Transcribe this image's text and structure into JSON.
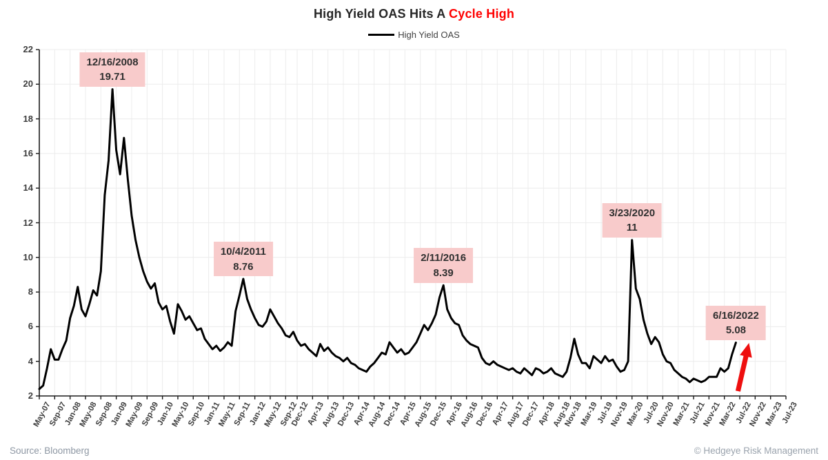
{
  "title": {
    "main": "High Yield OAS Hits A ",
    "highlight": "Cycle High"
  },
  "legend": {
    "label": "High Yield OAS"
  },
  "footer": {
    "source": "Source: Bloomberg",
    "copyright": "© Hedgeye Risk Management"
  },
  "colors": {
    "line": "#000000",
    "title_text": "#262626",
    "title_highlight": "#ff0000",
    "annotation_bg": "#f8cbcb",
    "annotation_text": "#303030",
    "grid": "#ececec",
    "axis": "#1a1a1a",
    "axis_text": "#3d3d3d",
    "footer_text": "#8d97a3",
    "arrow_red": "#ee0f0f"
  },
  "chart_data": {
    "type": "line",
    "title": "High Yield OAS Hits A Cycle High",
    "series_name": "High Yield OAS",
    "x_start_month": "2007-05",
    "x_end_month": "2023-07",
    "ylim": [
      2,
      22
    ],
    "y_ticks": [
      2,
      4,
      6,
      8,
      10,
      12,
      14,
      16,
      18,
      20,
      22
    ],
    "grid": "both",
    "legend_position": "top-center",
    "x_tick_labels": [
      "May-07",
      "Sep-07",
      "Jan-08",
      "May-08",
      "Sep-08",
      "Jan-09",
      "May-09",
      "Sep-09",
      "Jan-10",
      "May-10",
      "Sep-10",
      "Jan-11",
      "May-11",
      "Sep-11",
      "Jan-12",
      "May-12",
      "Sep-12",
      "Dec-12",
      "Apr-13",
      "Aug-13",
      "Dec-13",
      "Apr-14",
      "Aug-14",
      "Dec-14",
      "Apr-15",
      "Aug-15",
      "Dec-15",
      "Apr-16",
      "Aug-16",
      "Dec-16",
      "Apr-17",
      "Aug-17",
      "Dec-17",
      "Apr-18",
      "Aug-18",
      "Nov-18",
      "Mar-19",
      "Jul-19",
      "Nov-19",
      "Mar-20",
      "Jul-20",
      "Nov-20",
      "Mar-21",
      "Jul-21",
      "Nov-21",
      "Mar-22",
      "Jul-22",
      "Nov-22",
      "Mar-23",
      "Jul-23"
    ],
    "x_tick_month_offsets": [
      0,
      4,
      8,
      12,
      16,
      20,
      24,
      28,
      32,
      36,
      40,
      44,
      48,
      52,
      56,
      60,
      64,
      67,
      71,
      75,
      79,
      83,
      87,
      91,
      95,
      99,
      103,
      107,
      111,
      115,
      119,
      123,
      127,
      131,
      135,
      138,
      142,
      146,
      150,
      154,
      158,
      162,
      166,
      170,
      174,
      178,
      182,
      186,
      190,
      194
    ],
    "values_monthly": [
      2.4,
      2.6,
      3.6,
      4.7,
      4.1,
      4.1,
      4.7,
      5.2,
      6.5,
      7.2,
      8.3,
      7.0,
      6.6,
      7.3,
      8.1,
      7.8,
      9.2,
      13.6,
      15.6,
      19.71,
      16.2,
      14.8,
      16.9,
      14.5,
      12.4,
      11.0,
      10.0,
      9.2,
      8.6,
      8.2,
      8.5,
      7.4,
      7.0,
      7.2,
      6.3,
      5.6,
      7.3,
      6.9,
      6.4,
      6.6,
      6.2,
      5.8,
      5.9,
      5.3,
      5.0,
      4.7,
      4.9,
      4.6,
      4.8,
      5.1,
      4.9,
      6.9,
      7.8,
      8.76,
      7.6,
      7.0,
      6.5,
      6.1,
      6.0,
      6.3,
      7.0,
      6.6,
      6.2,
      5.9,
      5.5,
      5.4,
      5.7,
      5.2,
      4.9,
      5.0,
      4.7,
      4.5,
      4.3,
      5.0,
      4.6,
      4.8,
      4.5,
      4.3,
      4.2,
      4.0,
      4.2,
      3.9,
      3.8,
      3.6,
      3.5,
      3.4,
      3.7,
      3.9,
      4.2,
      4.5,
      4.4,
      5.1,
      4.8,
      4.5,
      4.7,
      4.4,
      4.5,
      4.8,
      5.1,
      5.6,
      6.1,
      5.8,
      6.2,
      6.7,
      7.7,
      8.39,
      7.0,
      6.5,
      6.2,
      6.1,
      5.5,
      5.2,
      5.0,
      4.9,
      4.8,
      4.2,
      3.9,
      3.8,
      4.0,
      3.8,
      3.7,
      3.6,
      3.5,
      3.6,
      3.4,
      3.3,
      3.6,
      3.4,
      3.2,
      3.6,
      3.5,
      3.3,
      3.4,
      3.6,
      3.3,
      3.2,
      3.1,
      3.4,
      4.2,
      5.3,
      4.4,
      3.9,
      3.9,
      3.6,
      4.3,
      4.1,
      3.9,
      4.3,
      4.0,
      4.1,
      3.7,
      3.4,
      3.5,
      4.0,
      11.0,
      8.2,
      7.6,
      6.4,
      5.6,
      5.0,
      5.4,
      5.1,
      4.4,
      4.0,
      3.9,
      3.5,
      3.3,
      3.1,
      3.0,
      2.8,
      3.0,
      2.9,
      2.8,
      2.9,
      3.1,
      3.1,
      3.1,
      3.6,
      3.4,
      3.6,
      4.4,
      5.08
    ],
    "annotations": [
      {
        "date": "12/16/2008",
        "value_label": "19.71",
        "value": 19.71,
        "month_offset": 19
      },
      {
        "date": "10/4/2011",
        "value_label": "8.76",
        "value": 8.76,
        "month_offset": 53
      },
      {
        "date": "2/11/2016",
        "value_label": "8.39",
        "value": 8.39,
        "month_offset": 105
      },
      {
        "date": "3/23/2020",
        "value_label": "11",
        "value": 11,
        "month_offset": 154
      },
      {
        "date": "6/16/2022",
        "value_label": "5.08",
        "value": 5.08,
        "month_offset": 181
      }
    ],
    "arrow_annotation": {
      "present": true,
      "direction": "up",
      "at": "last-point"
    }
  }
}
